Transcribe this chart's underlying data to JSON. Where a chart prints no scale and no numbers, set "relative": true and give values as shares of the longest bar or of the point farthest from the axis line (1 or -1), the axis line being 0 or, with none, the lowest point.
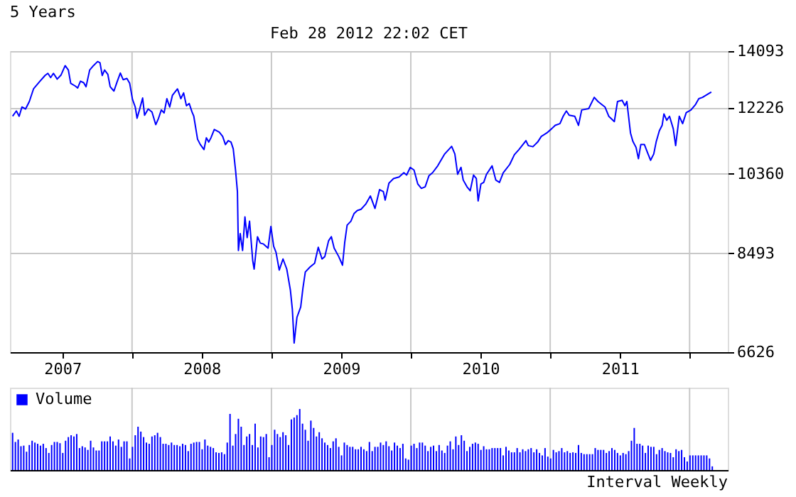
{
  "chart_data": [
    {
      "type": "line",
      "title": "5 Years",
      "annotations": [
        "Feb 28 2012 22:02 CET"
      ],
      "color": "#0000ff",
      "x": [
        2007.143,
        2007.17,
        2007.19,
        2007.21,
        2007.236,
        2007.263,
        2007.293,
        2007.336,
        2007.376,
        2007.396,
        2007.416,
        2007.436,
        2007.463,
        2007.49,
        2007.52,
        2007.543,
        2007.56,
        2007.593,
        2007.61,
        2007.63,
        2007.653,
        2007.67,
        2007.696,
        2007.723,
        2007.753,
        2007.77,
        2007.786,
        2007.803,
        2007.826,
        2007.843,
        2007.87,
        2007.893,
        2007.916,
        2007.936,
        2007.963,
        2007.983,
        2008.003,
        2008.023,
        2008.036,
        2008.053,
        2008.076,
        2008.09,
        2008.116,
        2008.143,
        2008.17,
        2008.19,
        2008.21,
        2008.23,
        2008.25,
        2008.27,
        2008.29,
        2008.326,
        2008.35,
        2008.37,
        2008.39,
        2008.41,
        2008.43,
        2008.443,
        2008.47,
        2008.49,
        2008.516,
        2008.533,
        2008.55,
        2008.566,
        2008.59,
        2008.626,
        2008.65,
        2008.67,
        2008.69,
        2008.71,
        2008.726,
        2008.743,
        2008.756,
        2008.763,
        2008.776,
        2008.793,
        2008.81,
        2008.826,
        2008.843,
        2008.866,
        2008.876,
        2008.9,
        2008.92,
        2008.943,
        2008.976,
        2008.996,
        2009.016,
        2009.033,
        2009.056,
        2009.083,
        2009.11,
        2009.136,
        2009.15,
        2009.163,
        2009.183,
        2009.21,
        2009.226,
        2009.243,
        2009.276,
        2009.31,
        2009.336,
        2009.363,
        2009.383,
        2009.41,
        2009.43,
        2009.45,
        2009.483,
        2009.51,
        2009.526,
        2009.543,
        2009.57,
        2009.593,
        2009.616,
        2009.643,
        2009.676,
        2009.71,
        2009.743,
        2009.776,
        2009.803,
        2009.816,
        2009.843,
        2009.876,
        2009.916,
        2009.95,
        2009.97,
        2009.996,
        2010.023,
        2010.05,
        2010.076,
        2010.103,
        2010.13,
        2010.156,
        2010.193,
        2010.243,
        2010.293,
        2010.316,
        2010.336,
        2010.36,
        2010.376,
        2010.403,
        2010.426,
        2010.45,
        2010.47,
        2010.483,
        2010.503,
        2010.523,
        2010.543,
        2010.583,
        2010.61,
        2010.636,
        2010.663,
        2010.71,
        2010.743,
        2010.776,
        2010.826,
        2010.843,
        2010.876,
        2010.91,
        2010.936,
        2010.976,
        2011.01,
        2011.036,
        2011.07,
        2011.093,
        2011.116,
        2011.136,
        2011.176,
        2011.203,
        2011.226,
        2011.276,
        2011.316,
        2011.343,
        2011.393,
        2011.42,
        2011.46,
        2011.483,
        2011.516,
        2011.536,
        2011.55,
        2011.576,
        2011.593,
        2011.616,
        2011.633,
        2011.65,
        2011.676,
        2011.7,
        2011.72,
        2011.743,
        2011.76,
        2011.783,
        2011.803,
        2011.816,
        2011.836,
        2011.856,
        2011.883,
        2011.9,
        2011.926,
        2011.95,
        2011.976,
        2012.01,
        2012.043,
        2012.066,
        2012.093,
        2012.126,
        2012.156
      ],
      "values": [
        11973,
        12130,
        11970,
        12250,
        12190,
        12420,
        12820,
        13050,
        13260,
        13330,
        13190,
        13330,
        13140,
        13270,
        13590,
        13440,
        13000,
        12910,
        12850,
        13070,
        13020,
        12890,
        13440,
        13590,
        13730,
        13690,
        13260,
        13440,
        13300,
        12890,
        12750,
        13050,
        13340,
        13120,
        13160,
        13000,
        12490,
        12250,
        11910,
        12160,
        12530,
        12000,
        12190,
        12100,
        11720,
        11910,
        12160,
        12070,
        12510,
        12250,
        12620,
        12820,
        12510,
        12690,
        12290,
        12360,
        12100,
        11970,
        11300,
        11150,
        11010,
        11340,
        11220,
        11340,
        11580,
        11500,
        11380,
        11150,
        11260,
        11220,
        11030,
        10440,
        9910,
        8550,
        8920,
        8550,
        9300,
        8830,
        9200,
        8330,
        8160,
        8850,
        8710,
        8690,
        8600,
        9080,
        8640,
        8510,
        8140,
        8370,
        8160,
        7740,
        7380,
        6780,
        7230,
        7420,
        7780,
        8100,
        8200,
        8280,
        8620,
        8370,
        8420,
        8760,
        8850,
        8600,
        8420,
        8240,
        8730,
        9110,
        9200,
        9380,
        9450,
        9480,
        9600,
        9800,
        9500,
        9960,
        9910,
        9700,
        10120,
        10240,
        10280,
        10390,
        10330,
        10530,
        10460,
        10100,
        9990,
        10030,
        10310,
        10390,
        10570,
        10890,
        11100,
        10890,
        10350,
        10530,
        10200,
        10030,
        9930,
        10330,
        10240,
        9680,
        10100,
        10140,
        10350,
        10570,
        10200,
        10140,
        10390,
        10610,
        10870,
        11010,
        11260,
        11120,
        11090,
        11220,
        11380,
        11480,
        11600,
        11700,
        11750,
        11970,
        12130,
        12000,
        11970,
        11700,
        12160,
        12200,
        12550,
        12420,
        12250,
        11970,
        11810,
        12420,
        12460,
        12290,
        12420,
        11480,
        11240,
        11070,
        10760,
        11150,
        11150,
        10910,
        10720,
        10890,
        11220,
        11540,
        11700,
        12040,
        11850,
        11970,
        11600,
        11120,
        11970,
        11750,
        12080,
        12160,
        12330,
        12510,
        12550,
        12640,
        12720
      ],
      "xlim": [
        2007.124,
        2012.274
      ],
      "xticks": [
        {
          "value": 2007.5,
          "label": "2007"
        },
        {
          "value": 2008,
          "label": null
        },
        {
          "value": 2008.5,
          "label": "2008"
        },
        {
          "value": 2009,
          "label": null
        },
        {
          "value": 2009.5,
          "label": "2009"
        },
        {
          "value": 2010,
          "label": null
        },
        {
          "value": 2010.5,
          "label": "2010"
        },
        {
          "value": 2011,
          "label": null
        },
        {
          "value": 2011.5,
          "label": "2011"
        },
        {
          "value": 2012,
          "label": null
        }
      ],
      "ylim": [
        6626,
        14093
      ],
      "yticks": [
        6626,
        8493,
        10360,
        12226,
        14093
      ],
      "log": true,
      "grid": true,
      "marker": "none",
      "line_style": "solid"
    },
    {
      "type": "bar",
      "relative": true,
      "tick_labels": false,
      "grid": "x",
      "legend": "top left",
      "annotations": [
        "Interval Weekly"
      ],
      "xlim": [
        2007.124,
        2012.274
      ],
      "xticks": [
        {
          "value": 2008,
          "label": null
        },
        {
          "value": 2009,
          "label": null
        },
        {
          "value": 2010,
          "label": null
        },
        {
          "value": 2011,
          "label": null
        },
        {
          "value": 2012,
          "label": null
        }
      ],
      "series": [
        {
          "name": "Volume",
          "color": "#0000ff",
          "x": [
            2007.143,
            2007.163,
            2007.183,
            2007.203,
            2007.223,
            2007.243,
            2007.263,
            2007.283,
            2007.303,
            2007.323,
            2007.343,
            2007.363,
            2007.383,
            2007.403,
            2007.423,
            2007.443,
            2007.463,
            2007.483,
            2007.503,
            2007.523,
            2007.543,
            2007.563,
            2007.583,
            2007.603,
            2007.623,
            2007.643,
            2007.663,
            2007.683,
            2007.703,
            2007.723,
            2007.743,
            2007.763,
            2007.783,
            2007.803,
            2007.823,
            2007.843,
            2007.863,
            2007.883,
            2007.903,
            2007.923,
            2007.943,
            2007.963,
            2007.983,
            2008.003,
            2008.023,
            2008.043,
            2008.063,
            2008.083,
            2008.103,
            2008.123,
            2008.143,
            2008.163,
            2008.183,
            2008.203,
            2008.223,
            2008.243,
            2008.263,
            2008.283,
            2008.303,
            2008.323,
            2008.343,
            2008.363,
            2008.383,
            2008.403,
            2008.423,
            2008.443,
            2008.463,
            2008.483,
            2008.503,
            2008.523,
            2008.543,
            2008.563,
            2008.583,
            2008.603,
            2008.623,
            2008.643,
            2008.663,
            2008.683,
            2008.703,
            2008.723,
            2008.743,
            2008.763,
            2008.783,
            2008.803,
            2008.823,
            2008.843,
            2008.863,
            2008.883,
            2008.903,
            2008.923,
            2008.943,
            2008.963,
            2008.983,
            2009.003,
            2009.023,
            2009.043,
            2009.063,
            2009.083,
            2009.103,
            2009.123,
            2009.143,
            2009.163,
            2009.183,
            2009.203,
            2009.223,
            2009.243,
            2009.263,
            2009.283,
            2009.303,
            2009.323,
            2009.343,
            2009.363,
            2009.383,
            2009.403,
            2009.423,
            2009.443,
            2009.463,
            2009.483,
            2009.503,
            2009.523,
            2009.543,
            2009.563,
            2009.583,
            2009.603,
            2009.623,
            2009.643,
            2009.663,
            2009.683,
            2009.703,
            2009.723,
            2009.743,
            2009.763,
            2009.783,
            2009.803,
            2009.823,
            2009.843,
            2009.863,
            2009.883,
            2009.903,
            2009.923,
            2009.943,
            2009.963,
            2009.983,
            2010.003,
            2010.023,
            2010.043,
            2010.063,
            2010.083,
            2010.103,
            2010.123,
            2010.143,
            2010.163,
            2010.183,
            2010.203,
            2010.223,
            2010.243,
            2010.263,
            2010.283,
            2010.303,
            2010.323,
            2010.343,
            2010.363,
            2010.383,
            2010.403,
            2010.423,
            2010.443,
            2010.463,
            2010.483,
            2010.503,
            2010.523,
            2010.543,
            2010.563,
            2010.583,
            2010.603,
            2010.623,
            2010.643,
            2010.663,
            2010.683,
            2010.703,
            2010.723,
            2010.743,
            2010.763,
            2010.783,
            2010.803,
            2010.823,
            2010.843,
            2010.863,
            2010.883,
            2010.903,
            2010.923,
            2010.943,
            2010.963,
            2010.983,
            2011.003,
            2011.023,
            2011.043,
            2011.063,
            2011.083,
            2011.103,
            2011.123,
            2011.143,
            2011.163,
            2011.183,
            2011.203,
            2011.223,
            2011.243,
            2011.263,
            2011.283,
            2011.303,
            2011.323,
            2011.343,
            2011.363,
            2011.383,
            2011.403,
            2011.423,
            2011.443,
            2011.463,
            2011.483,
            2011.503,
            2011.523,
            2011.543,
            2011.563,
            2011.583,
            2011.603,
            2011.623,
            2011.643,
            2011.663,
            2011.683,
            2011.703,
            2011.723,
            2011.743,
            2011.763,
            2011.783,
            2011.803,
            2011.823,
            2011.843,
            2011.863,
            2011.883,
            2011.903,
            2011.923,
            2011.943,
            2011.963,
            2011.983,
            2012.003,
            2012.023,
            2012.043,
            2012.063,
            2012.083,
            2012.103,
            2012.123,
            2012.143,
            2012.163
          ],
          "values": [
            0.61,
            0.46,
            0.5,
            0.39,
            0.4,
            0.3,
            0.41,
            0.48,
            0.45,
            0.43,
            0.4,
            0.43,
            0.36,
            0.28,
            0.41,
            0.46,
            0.46,
            0.44,
            0.28,
            0.48,
            0.54,
            0.57,
            0.55,
            0.59,
            0.36,
            0.39,
            0.37,
            0.33,
            0.48,
            0.37,
            0.32,
            0.32,
            0.47,
            0.47,
            0.47,
            0.55,
            0.47,
            0.4,
            0.5,
            0.38,
            0.47,
            0.47,
            0.19,
            0.38,
            0.57,
            0.71,
            0.63,
            0.54,
            0.45,
            0.43,
            0.55,
            0.57,
            0.61,
            0.54,
            0.43,
            0.43,
            0.41,
            0.45,
            0.41,
            0.41,
            0.39,
            0.43,
            0.41,
            0.31,
            0.43,
            0.45,
            0.46,
            0.46,
            0.34,
            0.5,
            0.4,
            0.38,
            0.36,
            0.29,
            0.28,
            0.29,
            0.26,
            0.45,
            0.92,
            0.4,
            0.59,
            0.84,
            0.71,
            0.41,
            0.55,
            0.59,
            0.41,
            0.76,
            0.37,
            0.55,
            0.54,
            0.59,
            0.21,
            0.41,
            0.66,
            0.59,
            0.54,
            0.62,
            0.57,
            0.41,
            0.83,
            0.86,
            0.9,
            1,
            0.76,
            0.66,
            0.48,
            0.81,
            0.69,
            0.55,
            0.62,
            0.52,
            0.45,
            0.41,
            0.36,
            0.47,
            0.52,
            0.38,
            0.24,
            0.45,
            0.41,
            0.38,
            0.38,
            0.34,
            0.34,
            0.38,
            0.34,
            0.31,
            0.46,
            0.31,
            0.38,
            0.38,
            0.45,
            0.41,
            0.47,
            0.39,
            0.32,
            0.45,
            0.4,
            0.36,
            0.43,
            0.19,
            0.17,
            0.4,
            0.43,
            0.36,
            0.45,
            0.45,
            0.4,
            0.31,
            0.38,
            0.4,
            0.31,
            0.41,
            0.32,
            0.28,
            0.4,
            0.47,
            0.34,
            0.55,
            0.41,
            0.57,
            0.48,
            0.31,
            0.38,
            0.43,
            0.45,
            0.43,
            0.33,
            0.39,
            0.34,
            0.34,
            0.36,
            0.36,
            0.36,
            0.36,
            0.24,
            0.38,
            0.32,
            0.29,
            0.29,
            0.36,
            0.29,
            0.34,
            0.31,
            0.34,
            0.36,
            0.29,
            0.34,
            0.28,
            0.24,
            0.36,
            0.22,
            0.19,
            0.33,
            0.29,
            0.31,
            0.36,
            0.29,
            0.31,
            0.28,
            0.29,
            0.28,
            0.41,
            0.28,
            0.26,
            0.26,
            0.26,
            0.26,
            0.36,
            0.33,
            0.33,
            0.33,
            0.28,
            0.31,
            0.36,
            0.33,
            0.28,
            0.24,
            0.28,
            0.26,
            0.31,
            0.48,
            0.69,
            0.43,
            0.43,
            0.4,
            0.28,
            0.4,
            0.38,
            0.38,
            0.26,
            0.33,
            0.36,
            0.31,
            0.29,
            0.28,
            0.21,
            0.34,
            0.31,
            0.33,
            0.21,
            0.14,
            0.24,
            0.24,
            0.24,
            0.24,
            0.24,
            0.24,
            0.24,
            0.19,
            0.06
          ]
        }
      ]
    }
  ]
}
